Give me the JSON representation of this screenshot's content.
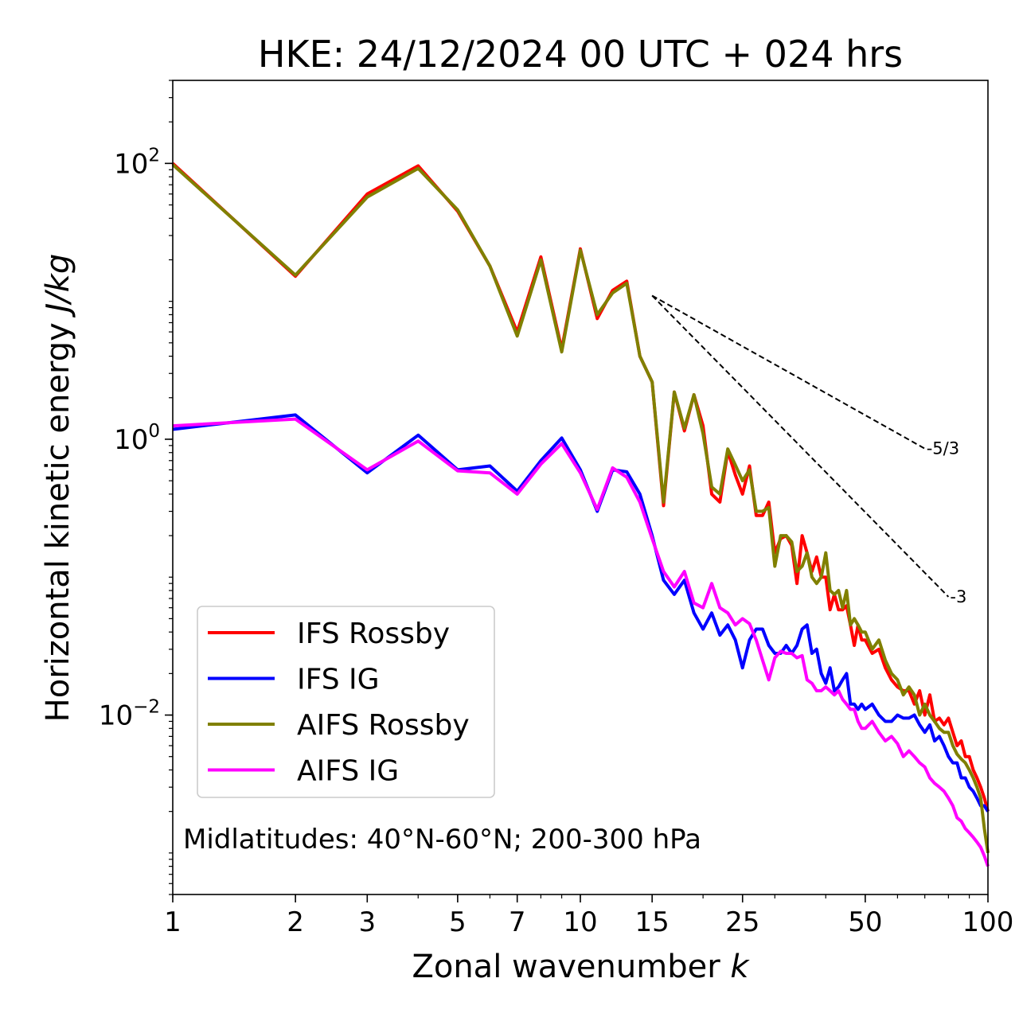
{
  "chart_data": {
    "type": "line",
    "title": "HKE: 24/12/2024 00 UTC + 024 hrs",
    "xlabel_main": "Zonal wavenumber ",
    "xlabel_var": "k",
    "ylabel_main": "Horizontal kinetic energy ",
    "ylabel_unit": "J/kg",
    "x_scale": "log",
    "y_scale": "log",
    "xlim": [
      1,
      100
    ],
    "ylim": [
      0.0005,
      400
    ],
    "x_ticks": [
      1,
      2,
      3,
      5,
      7,
      10,
      15,
      25,
      50,
      100
    ],
    "x_tick_labels": [
      "1",
      "2",
      "3",
      "5",
      "7",
      "10",
      "15",
      "25",
      "50",
      "100"
    ],
    "y_ticks": [
      {
        "value": 100,
        "base": "10",
        "exp": "2"
      },
      {
        "value": 1,
        "base": "10",
        "exp": "0"
      },
      {
        "value": 0.01,
        "base": "10",
        "exp": "−2"
      }
    ],
    "annotation": "Midlatitudes: 40°N-60°N; 200-300 hPa",
    "legend_position": "lower-left",
    "reference_lines": [
      {
        "label": "-5/3",
        "x": [
          15,
          70
        ],
        "y": [
          11.0,
          0.855
        ]
      },
      {
        "label": "-3",
        "x": [
          15,
          80
        ],
        "y": [
          11.0,
          0.072
        ]
      }
    ],
    "series": [
      {
        "name": "IFS Rossby",
        "color": "#ff0000",
        "x": [
          1,
          2,
          3,
          4,
          5,
          6,
          7,
          8,
          9,
          10,
          11,
          12,
          13,
          14,
          15,
          16,
          17,
          18,
          19,
          20,
          21,
          22,
          23,
          24,
          25,
          26,
          27,
          28,
          29,
          30,
          31,
          32,
          33,
          34,
          35,
          36,
          37,
          38,
          39,
          40,
          41,
          42,
          43,
          44,
          45,
          46,
          47,
          48,
          49,
          50,
          52,
          54,
          56,
          58,
          60,
          62,
          64,
          66,
          68,
          70,
          72,
          74,
          76,
          78,
          80,
          82,
          84,
          86,
          88,
          90,
          92,
          94,
          96,
          98,
          100
        ],
        "y": [
          100,
          15.2,
          60.0,
          96.0,
          45.0,
          18.0,
          6.0,
          21.0,
          4.5,
          24.0,
          7.5,
          12.0,
          14.0,
          4.0,
          2.6,
          0.33,
          2.2,
          1.15,
          2.1,
          1.25,
          0.4,
          0.35,
          0.82,
          0.55,
          0.4,
          0.64,
          0.28,
          0.28,
          0.35,
          0.15,
          0.19,
          0.2,
          0.17,
          0.09,
          0.2,
          0.15,
          0.11,
          0.14,
          0.1,
          0.1,
          0.058,
          0.075,
          0.058,
          0.058,
          0.062,
          0.045,
          0.032,
          0.045,
          0.035,
          0.035,
          0.028,
          0.03,
          0.022,
          0.018,
          0.016,
          0.015,
          0.015,
          0.012,
          0.015,
          0.01,
          0.014,
          0.009,
          0.0095,
          0.0085,
          0.0095,
          0.0075,
          0.006,
          0.0065,
          0.005,
          0.005,
          0.004,
          0.0035,
          0.003,
          0.0025,
          0.002
        ]
      },
      {
        "name": "IFS IG",
        "color": "#0000ff",
        "x": [
          1,
          2,
          3,
          4,
          5,
          6,
          7,
          8,
          9,
          10,
          11,
          12,
          13,
          14,
          15,
          16,
          17,
          18,
          19,
          20,
          21,
          22,
          23,
          24,
          25,
          26,
          27,
          28,
          29,
          30,
          31,
          32,
          33,
          34,
          35,
          36,
          37,
          38,
          39,
          40,
          41,
          42,
          43,
          44,
          45,
          46,
          47,
          48,
          49,
          50,
          52,
          54,
          56,
          58,
          60,
          62,
          64,
          66,
          68,
          70,
          72,
          74,
          76,
          78,
          80,
          82,
          84,
          86,
          88,
          90,
          92,
          94,
          96,
          98,
          100
        ],
        "y": [
          1.18,
          1.5,
          0.57,
          1.07,
          0.6,
          0.64,
          0.42,
          0.7,
          1.02,
          0.6,
          0.3,
          0.6,
          0.58,
          0.4,
          0.2,
          0.095,
          0.075,
          0.095,
          0.055,
          0.042,
          0.055,
          0.038,
          0.045,
          0.035,
          0.022,
          0.035,
          0.042,
          0.042,
          0.032,
          0.028,
          0.028,
          0.032,
          0.028,
          0.032,
          0.042,
          0.045,
          0.028,
          0.03,
          0.02,
          0.017,
          0.022,
          0.015,
          0.016,
          0.018,
          0.02,
          0.012,
          0.012,
          0.011,
          0.012,
          0.011,
          0.012,
          0.01,
          0.009,
          0.009,
          0.01,
          0.0095,
          0.0095,
          0.01,
          0.0085,
          0.0075,
          0.0085,
          0.0065,
          0.007,
          0.006,
          0.005,
          0.0045,
          0.0045,
          0.0035,
          0.0035,
          0.003,
          0.0028,
          0.0025,
          0.0022,
          0.0022,
          0.002
        ]
      },
      {
        "name": "AIFS Rossby",
        "color": "#808000",
        "x": [
          1,
          2,
          3,
          4,
          5,
          6,
          7,
          8,
          9,
          10,
          11,
          12,
          13,
          14,
          15,
          16,
          17,
          18,
          19,
          20,
          21,
          22,
          23,
          24,
          25,
          26,
          27,
          28,
          29,
          30,
          31,
          32,
          33,
          34,
          35,
          36,
          37,
          38,
          39,
          40,
          41,
          42,
          43,
          44,
          45,
          46,
          47,
          48,
          49,
          50,
          52,
          54,
          56,
          58,
          60,
          62,
          64,
          66,
          68,
          70,
          72,
          74,
          76,
          78,
          80,
          82,
          84,
          86,
          88,
          90,
          92,
          94,
          96,
          98,
          100
        ],
        "y": [
          98,
          15.5,
          57.0,
          92.0,
          46.0,
          18.0,
          5.6,
          20.0,
          4.3,
          23.5,
          8.0,
          11.5,
          13.5,
          4.0,
          2.6,
          0.35,
          2.2,
          1.2,
          2.1,
          1.1,
          0.45,
          0.4,
          0.85,
          0.65,
          0.5,
          0.6,
          0.3,
          0.3,
          0.32,
          0.12,
          0.2,
          0.2,
          0.18,
          0.11,
          0.12,
          0.15,
          0.1,
          0.09,
          0.1,
          0.15,
          0.08,
          0.075,
          0.08,
          0.06,
          0.08,
          0.045,
          0.05,
          0.045,
          0.04,
          0.04,
          0.03,
          0.035,
          0.025,
          0.02,
          0.018,
          0.014,
          0.016,
          0.014,
          0.01,
          0.012,
          0.01,
          0.009,
          0.008,
          0.0075,
          0.0075,
          0.006,
          0.0052,
          0.0048,
          0.0045,
          0.004,
          0.0035,
          0.003,
          0.0025,
          0.0015,
          0.001
        ]
      },
      {
        "name": "AIFS IG",
        "color": "#ff00ff",
        "x": [
          1,
          2,
          3,
          4,
          5,
          6,
          7,
          8,
          9,
          10,
          11,
          12,
          13,
          14,
          15,
          16,
          17,
          18,
          19,
          20,
          21,
          22,
          23,
          24,
          25,
          26,
          27,
          28,
          29,
          30,
          31,
          32,
          33,
          34,
          35,
          36,
          37,
          38,
          39,
          40,
          41,
          42,
          43,
          44,
          45,
          46,
          47,
          48,
          49,
          50,
          52,
          54,
          56,
          58,
          60,
          62,
          64,
          66,
          68,
          70,
          72,
          74,
          76,
          78,
          80,
          82,
          84,
          86,
          88,
          90,
          92,
          94,
          96,
          98,
          100
        ],
        "y": [
          1.25,
          1.4,
          0.6,
          0.97,
          0.59,
          0.57,
          0.4,
          0.66,
          0.93,
          0.57,
          0.31,
          0.62,
          0.53,
          0.35,
          0.19,
          0.11,
          0.085,
          0.11,
          0.065,
          0.06,
          0.09,
          0.06,
          0.055,
          0.045,
          0.05,
          0.046,
          0.035,
          0.025,
          0.018,
          0.026,
          0.029,
          0.028,
          0.028,
          0.026,
          0.027,
          0.018,
          0.017,
          0.015,
          0.015,
          0.016,
          0.015,
          0.014,
          0.015,
          0.013,
          0.012,
          0.011,
          0.011,
          0.009,
          0.008,
          0.008,
          0.009,
          0.0075,
          0.0065,
          0.007,
          0.0062,
          0.005,
          0.0055,
          0.005,
          0.0045,
          0.0042,
          0.0035,
          0.0032,
          0.003,
          0.0028,
          0.0025,
          0.0022,
          0.0018,
          0.0017,
          0.0015,
          0.0014,
          0.0013,
          0.0012,
          0.0011,
          0.00095,
          0.0008
        ]
      }
    ]
  }
}
